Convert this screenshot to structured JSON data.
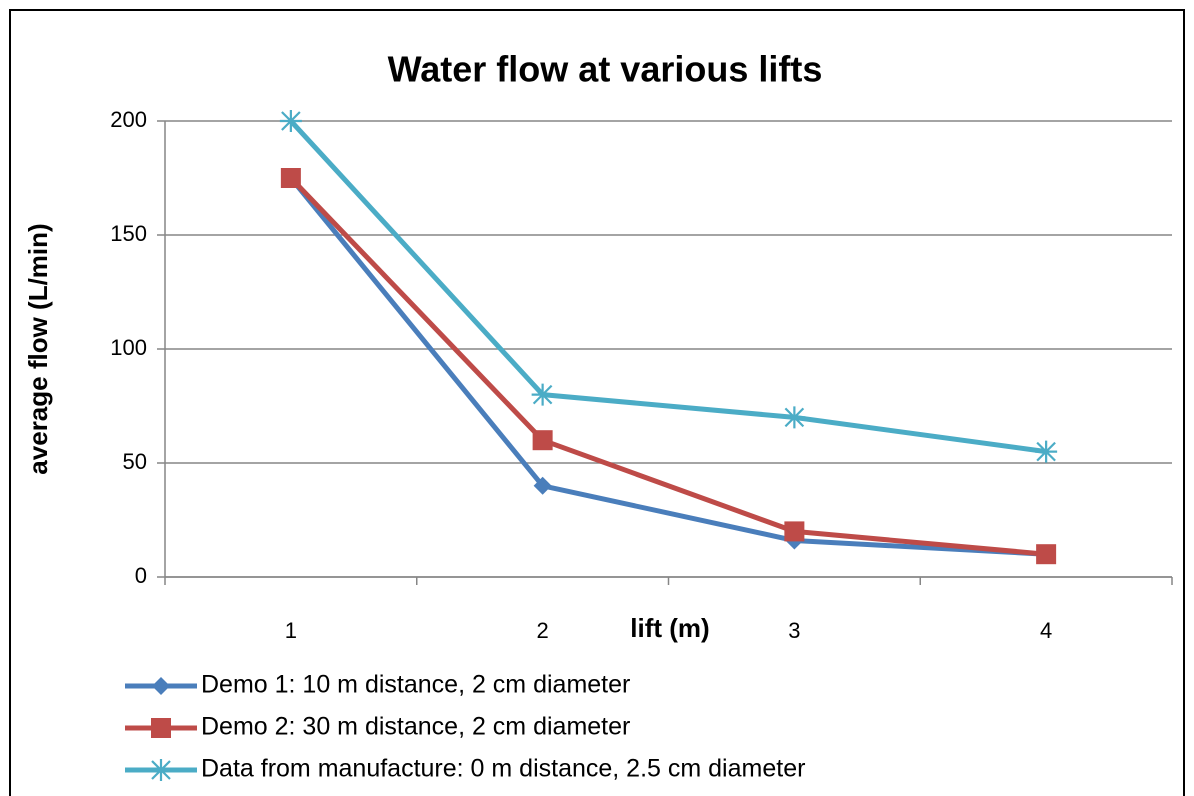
{
  "chart_data": {
    "type": "line",
    "title": "Water flow at various lifts",
    "x_label": "lift (m)",
    "y_label": "average flow (L/min)",
    "categories": [
      "1",
      "2",
      "3",
      "4"
    ],
    "series": [
      {
        "name": "Demo 1: 10 m distance, 2 cm diameter",
        "color": "#4a7ebb",
        "marker": "diamond",
        "values": [
          175,
          40,
          16,
          10
        ]
      },
      {
        "name": "Demo 2: 30 m distance, 2 cm diameter",
        "color": "#be4b48",
        "marker": "square",
        "values": [
          175,
          60,
          20,
          10
        ]
      },
      {
        "name": "Data from manufacture: 0 m distance, 2.5 cm diameter",
        "color": "#4bacc6",
        "marker": "star",
        "values": [
          200,
          80,
          70,
          55
        ]
      }
    ],
    "ylim": [
      0,
      200
    ],
    "yticks": [
      0,
      50,
      100,
      150,
      200
    ],
    "grid": true,
    "legend": "bottom"
  }
}
